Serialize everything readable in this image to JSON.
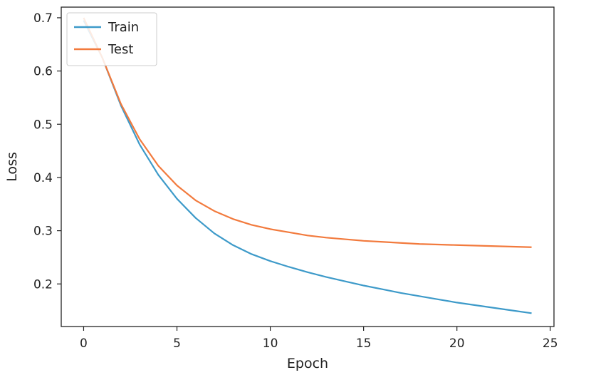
{
  "chart_data": {
    "type": "line",
    "xlabel": "Epoch",
    "ylabel": "Loss",
    "xlim": [
      -1.2,
      25.2
    ],
    "ylim": [
      0.12,
      0.72
    ],
    "xticks": [
      0,
      5,
      10,
      15,
      20,
      25
    ],
    "yticks": [
      0.2,
      0.3,
      0.4,
      0.5,
      0.6,
      0.7
    ],
    "grid": false,
    "legend": "top-left",
    "x": [
      0,
      1,
      2,
      3,
      4,
      5,
      6,
      7,
      8,
      9,
      10,
      11,
      12,
      13,
      14,
      15,
      16,
      17,
      18,
      19,
      20,
      21,
      22,
      23,
      24
    ],
    "series": [
      {
        "name": "Train",
        "color": "#3d9ac9",
        "values": [
          0.695,
          0.625,
          0.535,
          0.462,
          0.405,
          0.36,
          0.324,
          0.295,
          0.273,
          0.256,
          0.243,
          0.232,
          0.222,
          0.213,
          0.205,
          0.197,
          0.19,
          0.183,
          0.177,
          0.171,
          0.165,
          0.16,
          0.155,
          0.15,
          0.145
        ]
      },
      {
        "name": "Test",
        "color": "#f27a3d",
        "values": [
          0.7,
          0.625,
          0.538,
          0.472,
          0.422,
          0.385,
          0.357,
          0.337,
          0.322,
          0.311,
          0.303,
          0.297,
          0.291,
          0.287,
          0.284,
          0.281,
          0.279,
          0.277,
          0.275,
          0.274,
          0.273,
          0.272,
          0.271,
          0.27,
          0.269
        ]
      }
    ]
  }
}
